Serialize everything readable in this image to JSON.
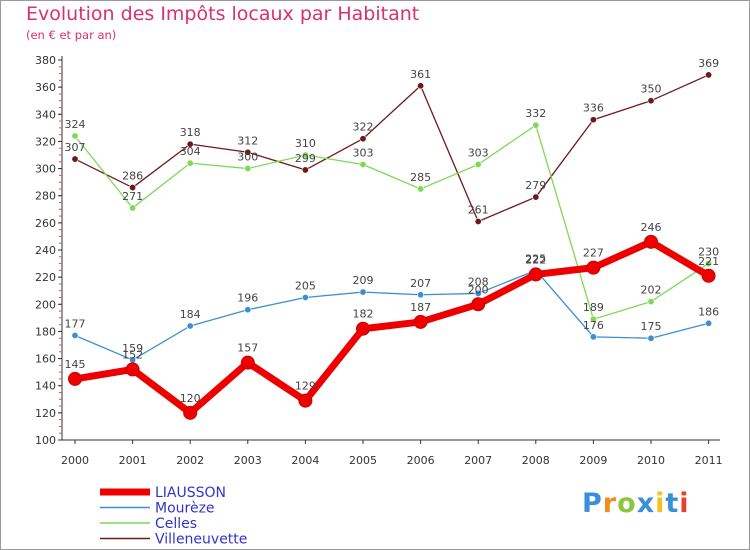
{
  "title": "Evolution des Impôts locaux par Habitant",
  "subtitle": "(en € et par an)",
  "chart_data": {
    "type": "line",
    "title": "Evolution des Impôts locaux par Habitant",
    "subtitle": "(en € et par an)",
    "xlabel": "",
    "ylabel": "",
    "x": [
      "2000",
      "2001",
      "2002",
      "2003",
      "2004",
      "2005",
      "2006",
      "2007",
      "2008",
      "2009",
      "2010",
      "2011"
    ],
    "ylim": [
      100,
      380
    ],
    "yticks": [
      100,
      120,
      140,
      160,
      180,
      200,
      220,
      240,
      260,
      280,
      300,
      320,
      340,
      360,
      380
    ],
    "grid": false,
    "legend_position": "bottom-left",
    "series": [
      {
        "name": "LIAUSSON",
        "color": "#ee0000",
        "values": [
          145,
          152,
          120,
          157,
          129,
          182,
          187,
          200,
          222,
          227,
          246,
          221
        ]
      },
      {
        "name": "Mourèze",
        "color": "#3d8fd0",
        "values": [
          177,
          159,
          184,
          196,
          205,
          209,
          207,
          208,
          225,
          176,
          175,
          186
        ]
      },
      {
        "name": "Celles",
        "color": "#7ed957",
        "values": [
          324,
          271,
          304,
          300,
          310,
          303,
          285,
          303,
          332,
          189,
          202,
          230
        ]
      },
      {
        "name": "Villeneuvette",
        "color": "#6e1a1a",
        "values": [
          307,
          286,
          318,
          312,
          299,
          322,
          361,
          261,
          279,
          336,
          350,
          369
        ]
      }
    ]
  },
  "logo": {
    "letters": [
      {
        "char": "P",
        "color": "#3a8fd8"
      },
      {
        "char": "r",
        "color": "#f28c1e"
      },
      {
        "char": "o",
        "color": "#8cc63f"
      },
      {
        "char": "x",
        "color": "#3a8fd8"
      },
      {
        "char": "i",
        "color": "#f2c21e"
      },
      {
        "char": "t",
        "color": "#3a8fd8"
      },
      {
        "char": "i",
        "color": "#e8402a"
      }
    ]
  }
}
